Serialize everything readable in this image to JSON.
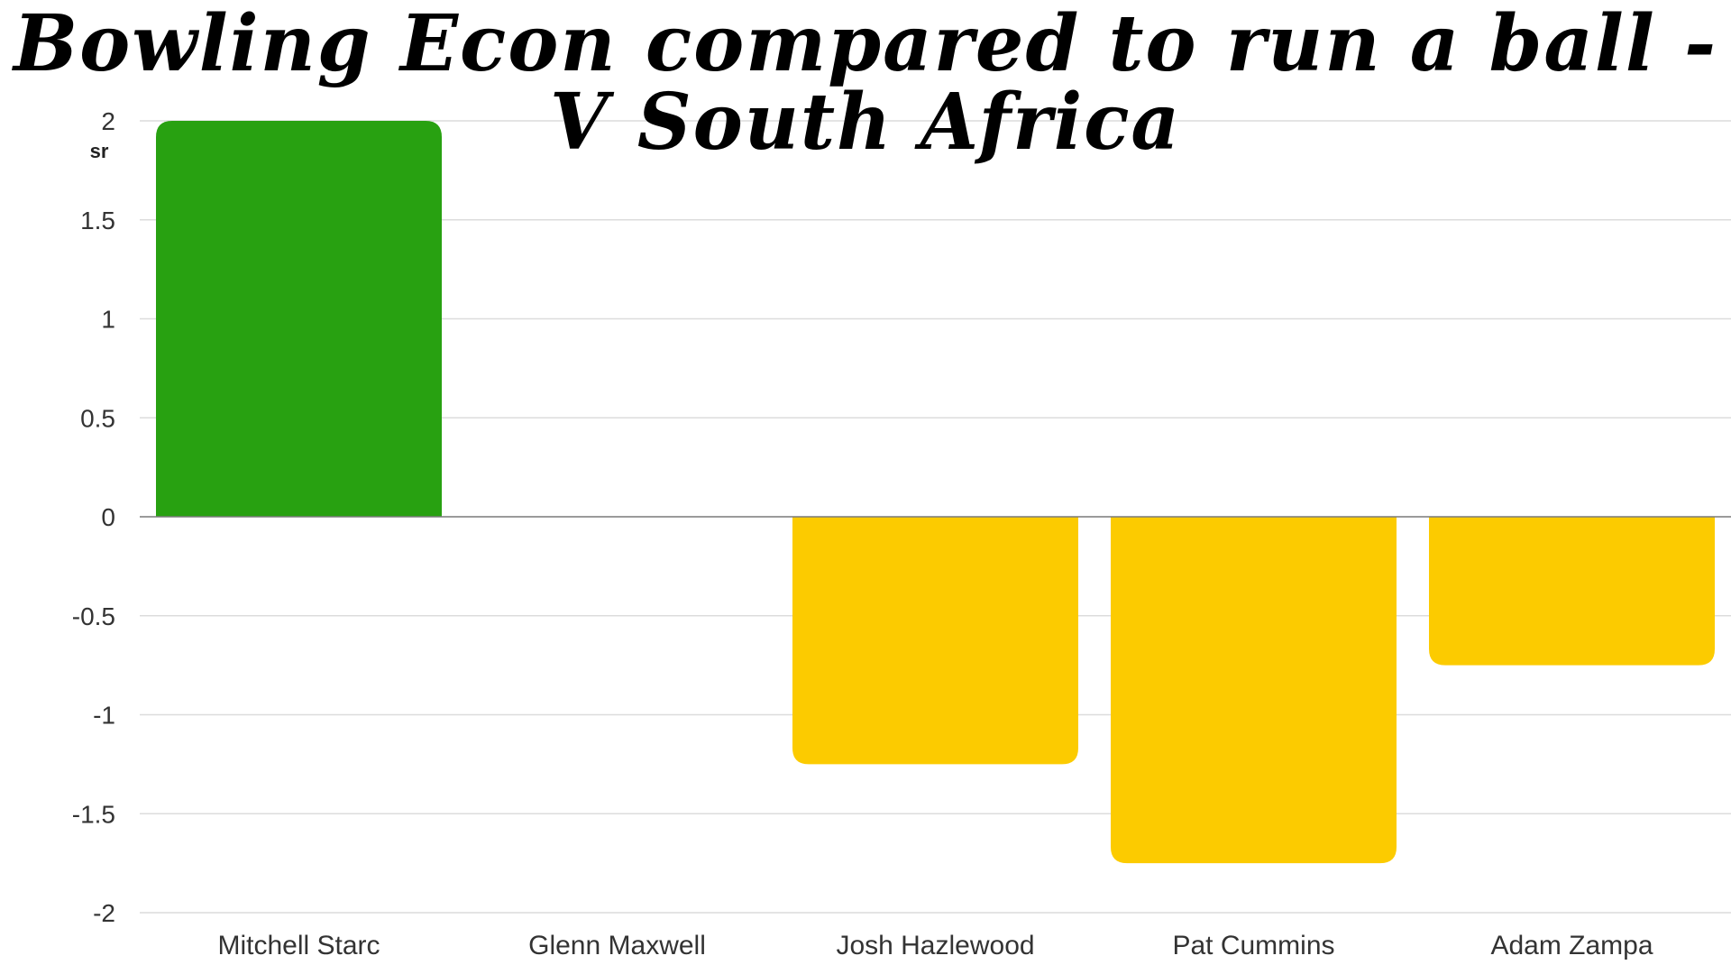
{
  "chart_data": {
    "type": "bar",
    "title": "Bowling Econ compared to run a ball - V South Africa",
    "title_lines": [
      "Bowling Econ compared to run a ball -",
      "V South Africa"
    ],
    "ylabel": "sr",
    "xlabel": "",
    "categories": [
      "Mitchell Starc",
      "Glenn Maxwell",
      "Josh Hazlewood",
      "Pat Cummins",
      "Adam Zampa"
    ],
    "values": [
      2,
      0,
      -1.25,
      -1.75,
      -0.75
    ],
    "ylim": [
      -2,
      2
    ],
    "yticks": [
      2,
      1.5,
      1,
      0.5,
      0,
      -0.5,
      -1,
      -1.5,
      -2
    ],
    "ytick_labels": [
      "2",
      "1.5",
      "1",
      "0.5",
      "0",
      "-0.5",
      "-1",
      "-1.5",
      "-2"
    ],
    "grid": true,
    "colors": {
      "positive": "#28a111",
      "negative": "#fccb00"
    }
  }
}
